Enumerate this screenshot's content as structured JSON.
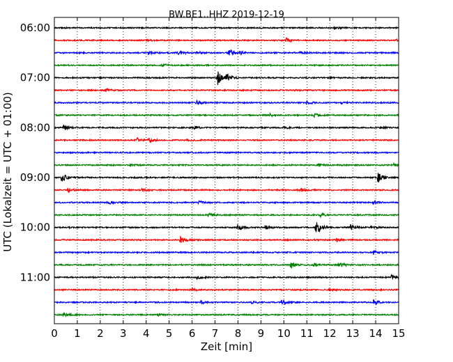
{
  "chart_data": {
    "type": "line",
    "title": "BW.BE1..HHZ 2019-12-19",
    "xlabel": "Zeit  [min]",
    "ylabel": "UTC (Lokalzeit = UTC + 01:00)",
    "xlim": [
      0,
      15
    ],
    "x_ticks": [
      "0",
      "1",
      "2",
      "3",
      "4",
      "5",
      "6",
      "7",
      "8",
      "9",
      "10",
      "11",
      "12",
      "13",
      "14",
      "15"
    ],
    "y_ticks": [
      {
        "label": "06:00",
        "trace": 0
      },
      {
        "label": "07:00",
        "trace": 4
      },
      {
        "label": "08:00",
        "trace": 8
      },
      {
        "label": "09:00",
        "trace": 12
      },
      {
        "label": "10:00",
        "trace": 16
      },
      {
        "label": "11:00",
        "trace": 20
      }
    ],
    "grid": "vertical dotted",
    "trace_interval_minutes": 15,
    "color_cycle": [
      "#000000",
      "#ff0000",
      "#0000ff",
      "#008000"
    ],
    "traces": [
      {
        "start": "06:00",
        "events": [
          {
            "t": 12.2,
            "amp": 0.25
          }
        ]
      },
      {
        "start": "06:15",
        "events": [
          {
            "t": 10.1,
            "amp": 0.5
          },
          {
            "t": 4.0,
            "amp": 0.2
          },
          {
            "t": 14.9,
            "amp": 0.2
          }
        ]
      },
      {
        "start": "06:30",
        "events": [
          {
            "t": 4.1,
            "amp": 0.35
          },
          {
            "t": 5.4,
            "amp": 0.45
          },
          {
            "t": 6.2,
            "amp": 0.4
          },
          {
            "t": 7.6,
            "amp": 0.8
          },
          {
            "t": 8.1,
            "amp": 0.35
          },
          {
            "t": 10.7,
            "amp": 0.3
          }
        ]
      },
      {
        "start": "06:45",
        "events": [
          {
            "t": 4.7,
            "amp": 0.3
          }
        ]
      },
      {
        "start": "07:00",
        "events": [
          {
            "t": 7.1,
            "amp": 1.6
          },
          {
            "t": 7.5,
            "amp": 0.7
          },
          {
            "t": 12.0,
            "amp": 0.15
          }
        ]
      },
      {
        "start": "07:15",
        "events": [
          {
            "t": 2.2,
            "amp": 0.35
          },
          {
            "t": 10.5,
            "amp": 0.2
          }
        ]
      },
      {
        "start": "07:30",
        "events": [
          {
            "t": 6.2,
            "amp": 0.45
          },
          {
            "t": 11.0,
            "amp": 0.3
          },
          {
            "t": 12.5,
            "amp": 0.2
          }
        ]
      },
      {
        "start": "07:45",
        "events": [
          {
            "t": 9.4,
            "amp": 0.3
          },
          {
            "t": 11.3,
            "amp": 0.35
          }
        ]
      },
      {
        "start": "08:00",
        "events": [
          {
            "t": 0.4,
            "amp": 0.55
          },
          {
            "t": 6.1,
            "amp": 0.2
          },
          {
            "t": 10.0,
            "amp": 0.25
          },
          {
            "t": 14.2,
            "amp": 0.2
          }
        ]
      },
      {
        "start": "08:15",
        "events": [
          {
            "t": 3.6,
            "amp": 0.45
          },
          {
            "t": 4.1,
            "amp": 0.5
          },
          {
            "t": 5.8,
            "amp": 0.2
          }
        ]
      },
      {
        "start": "08:30",
        "events": []
      },
      {
        "start": "08:45",
        "events": [
          {
            "t": 11.5,
            "amp": 0.35
          },
          {
            "t": 14.8,
            "amp": 0.45
          },
          {
            "t": 3.3,
            "amp": 0.15
          }
        ]
      },
      {
        "start": "09:00",
        "events": [
          {
            "t": 0.3,
            "amp": 0.9
          },
          {
            "t": 14.1,
            "amp": 1.2
          }
        ]
      },
      {
        "start": "09:15",
        "events": [
          {
            "t": 0.6,
            "amp": 0.55
          },
          {
            "t": 3.8,
            "amp": 0.3
          },
          {
            "t": 10.7,
            "amp": 0.3
          }
        ]
      },
      {
        "start": "09:30",
        "events": [
          {
            "t": 2.4,
            "amp": 0.25
          },
          {
            "t": 6.3,
            "amp": 0.3
          },
          {
            "t": 13.9,
            "amp": 0.2
          }
        ]
      },
      {
        "start": "09:45",
        "events": [
          {
            "t": 6.7,
            "amp": 0.3
          },
          {
            "t": 11.6,
            "amp": 0.35
          }
        ]
      },
      {
        "start": "10:00",
        "events": [
          {
            "t": 8.0,
            "amp": 0.6
          },
          {
            "t": 9.2,
            "amp": 0.6
          },
          {
            "t": 11.4,
            "amp": 1.7
          },
          {
            "t": 12.9,
            "amp": 0.55
          },
          {
            "t": 13.8,
            "amp": 0.3
          }
        ]
      },
      {
        "start": "10:15",
        "events": [
          {
            "t": 5.5,
            "amp": 0.7
          },
          {
            "t": 12.3,
            "amp": 0.4
          }
        ]
      },
      {
        "start": "10:30",
        "events": [
          {
            "t": 13.9,
            "amp": 0.4
          }
        ]
      },
      {
        "start": "10:45",
        "events": [
          {
            "t": 10.3,
            "amp": 0.6
          },
          {
            "t": 12.4,
            "amp": 0.6
          },
          {
            "t": 11.3,
            "amp": 0.3
          }
        ]
      },
      {
        "start": "11:00",
        "events": [
          {
            "t": 6.2,
            "amp": 0.3
          },
          {
            "t": 14.7,
            "amp": 0.7
          }
        ]
      },
      {
        "start": "11:15",
        "events": [
          {
            "t": 6.0,
            "amp": 0.2
          },
          {
            "t": 11.9,
            "amp": 0.2
          }
        ]
      },
      {
        "start": "11:30",
        "events": [
          {
            "t": 6.4,
            "amp": 0.35
          },
          {
            "t": 9.9,
            "amp": 0.6
          },
          {
            "t": 13.9,
            "amp": 0.6
          },
          {
            "t": 8.6,
            "amp": 0.3
          }
        ]
      },
      {
        "start": "11:45",
        "events": [
          {
            "t": 0.4,
            "amp": 0.4
          },
          {
            "t": 4.5,
            "amp": 0.2
          }
        ]
      }
    ]
  }
}
